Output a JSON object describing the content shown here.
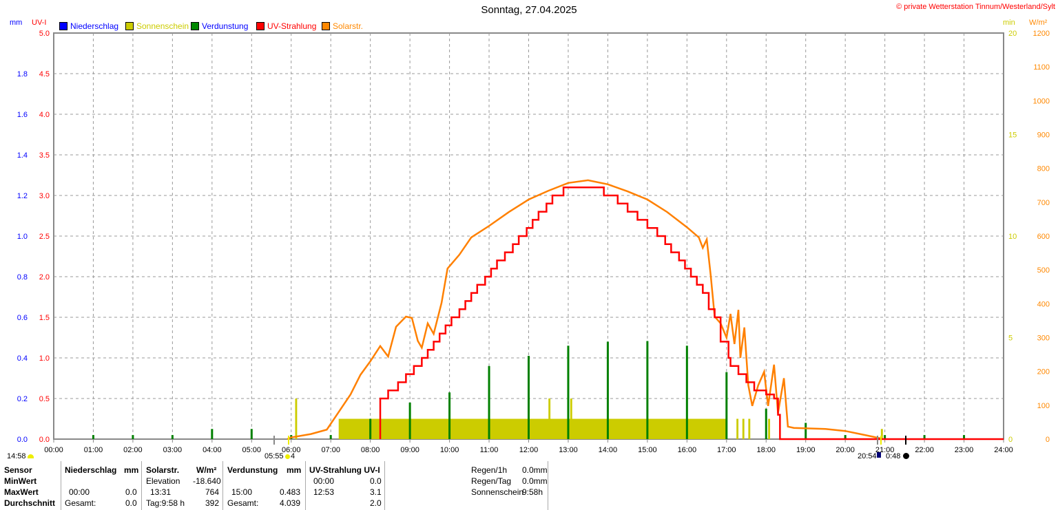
{
  "title": "Sonntag, 27.04.2025",
  "copyright": "© private Wetterstation Tinnum/Westerland/Sylt",
  "axis_units": {
    "mm": "mm",
    "uv": "UV-I",
    "min": "min",
    "wm2": "W/m²"
  },
  "legend": [
    {
      "label": "Niederschlag",
      "color": "#0000ff"
    },
    {
      "label": "Sonnenschein",
      "color": "#cccc00"
    },
    {
      "label": "Verdunstung",
      "color": "#008000"
    },
    {
      "label": "UV-Strahlung",
      "color": "#ff0000"
    },
    {
      "label": "Solarstr.",
      "color": "#ff8000"
    }
  ],
  "markers": {
    "sunrise_prev": "14:58",
    "sunrise": "05:55",
    "moon_phase": "4",
    "sunset": "20:54",
    "moon_time": "0:48"
  },
  "chart_data": {
    "type": "line",
    "title": "Sonntag, 27.04.2025",
    "x_range": [
      0,
      24
    ],
    "x_ticks": [
      "00:00",
      "01:00",
      "02:00",
      "03:00",
      "04:00",
      "05:00",
      "06:00",
      "07:00",
      "08:00",
      "09:00",
      "10:00",
      "11:00",
      "12:00",
      "13:00",
      "14:00",
      "15:00",
      "16:00",
      "17:00",
      "18:00",
      "19:00",
      "20:00",
      "21:00",
      "22:00",
      "23:00",
      "24:00"
    ],
    "mm_ticks": [
      "0.0",
      "0.2",
      "0.4",
      "0.6",
      "0.8",
      "1.0",
      "1.2",
      "1.4",
      "1.6",
      "1.8"
    ],
    "mm_range": [
      0,
      2
    ],
    "uv_ticks": [
      "0.0",
      "0.5",
      "1.0",
      "1.5",
      "2.0",
      "2.5",
      "3.0",
      "3.5",
      "4.0",
      "4.5",
      "5.0"
    ],
    "uv_range": [
      0,
      5
    ],
    "min_ticks": [
      "0",
      "5",
      "10",
      "15",
      "20"
    ],
    "min_range": [
      0,
      20
    ],
    "wm2_ticks": [
      "0",
      "100",
      "200",
      "300",
      "400",
      "500",
      "600",
      "700",
      "800",
      "900",
      "1000",
      "1100",
      "1200"
    ],
    "wm2_range": [
      0,
      1200
    ],
    "grid": true,
    "solar": [
      [
        5.9,
        0
      ],
      [
        6.0,
        5
      ],
      [
        6.5,
        15
      ],
      [
        6.9,
        28
      ],
      [
        7.2,
        80
      ],
      [
        7.5,
        132
      ],
      [
        7.75,
        190
      ],
      [
        8.0,
        230
      ],
      [
        8.25,
        275
      ],
      [
        8.45,
        244
      ],
      [
        8.65,
        332
      ],
      [
        8.9,
        362
      ],
      [
        9.05,
        358
      ],
      [
        9.2,
        290
      ],
      [
        9.3,
        270
      ],
      [
        9.45,
        342
      ],
      [
        9.6,
        311
      ],
      [
        9.8,
        403
      ],
      [
        9.95,
        504
      ],
      [
        10.25,
        545
      ],
      [
        10.55,
        596
      ],
      [
        11.0,
        630
      ],
      [
        11.5,
        671
      ],
      [
        12.0,
        708
      ],
      [
        12.5,
        734
      ],
      [
        13.0,
        757
      ],
      [
        13.5,
        765
      ],
      [
        14.0,
        753
      ],
      [
        14.5,
        732
      ],
      [
        15.0,
        708
      ],
      [
        15.5,
        671
      ],
      [
        16.0,
        626
      ],
      [
        16.3,
        596
      ],
      [
        16.4,
        565
      ],
      [
        16.5,
        590
      ],
      [
        16.6,
        484
      ],
      [
        16.7,
        362
      ],
      [
        16.85,
        342
      ],
      [
        17.0,
        300
      ],
      [
        17.1,
        370
      ],
      [
        17.2,
        281
      ],
      [
        17.3,
        382
      ],
      [
        17.35,
        240
      ],
      [
        17.45,
        330
      ],
      [
        17.55,
        159
      ],
      [
        17.65,
        98
      ],
      [
        17.8,
        159
      ],
      [
        17.95,
        199
      ],
      [
        18.05,
        98
      ],
      [
        18.2,
        220
      ],
      [
        18.3,
        77
      ],
      [
        18.45,
        180
      ],
      [
        18.55,
        37
      ],
      [
        18.7,
        33
      ],
      [
        19.5,
        30
      ],
      [
        20.0,
        24
      ],
      [
        20.5,
        12
      ],
      [
        20.9,
        2
      ]
    ],
    "uv": [
      [
        8.25,
        0
      ],
      [
        8.25,
        0.5
      ],
      [
        8.45,
        0.6
      ],
      [
        8.7,
        0.7
      ],
      [
        8.9,
        0.8
      ],
      [
        9.1,
        0.9
      ],
      [
        9.3,
        1.0
      ],
      [
        9.45,
        1.1
      ],
      [
        9.6,
        1.2
      ],
      [
        9.75,
        1.3
      ],
      [
        9.9,
        1.4
      ],
      [
        10.05,
        1.5
      ],
      [
        10.25,
        1.6
      ],
      [
        10.4,
        1.7
      ],
      [
        10.55,
        1.8
      ],
      [
        10.7,
        1.9
      ],
      [
        10.9,
        2.0
      ],
      [
        11.05,
        2.1
      ],
      [
        11.2,
        2.2
      ],
      [
        11.4,
        2.3
      ],
      [
        11.6,
        2.4
      ],
      [
        11.75,
        2.5
      ],
      [
        11.95,
        2.6
      ],
      [
        12.1,
        2.7
      ],
      [
        12.25,
        2.8
      ],
      [
        12.45,
        2.9
      ],
      [
        12.6,
        3.0
      ],
      [
        12.88,
        3.1
      ],
      [
        13.9,
        3.0
      ],
      [
        14.25,
        2.9
      ],
      [
        14.5,
        2.8
      ],
      [
        14.75,
        2.7
      ],
      [
        15.0,
        2.6
      ],
      [
        15.25,
        2.5
      ],
      [
        15.45,
        2.4
      ],
      [
        15.6,
        2.3
      ],
      [
        15.8,
        2.2
      ],
      [
        15.95,
        2.1
      ],
      [
        16.1,
        2.0
      ],
      [
        16.25,
        1.9
      ],
      [
        16.4,
        1.8
      ],
      [
        16.55,
        1.6
      ],
      [
        16.7,
        1.5
      ],
      [
        16.85,
        1.2
      ],
      [
        17.05,
        1.0
      ],
      [
        17.1,
        0.9
      ],
      [
        17.3,
        0.8
      ],
      [
        17.5,
        0.7
      ],
      [
        17.7,
        0.6
      ],
      [
        18.0,
        0.55
      ],
      [
        18.2,
        0.5
      ],
      [
        18.3,
        0.3
      ],
      [
        18.35,
        0
      ],
      [
        24,
        0
      ]
    ],
    "sunshine_minutes": [
      [
        6.1,
        6.15,
        2
      ],
      [
        7.2,
        17.0,
        1
      ],
      [
        12.5,
        12.55,
        2
      ],
      [
        13.05,
        13.1,
        2
      ],
      [
        17.25,
        17.3,
        1
      ],
      [
        17.4,
        17.45,
        1
      ],
      [
        17.55,
        17.6,
        1
      ],
      [
        18.05,
        18.1,
        1
      ],
      [
        20.9,
        20.95,
        0.5
      ]
    ],
    "evaporation_mm": [
      [
        1,
        0.02
      ],
      [
        2,
        0.02
      ],
      [
        3,
        0.02
      ],
      [
        4,
        0.05
      ],
      [
        5,
        0.05
      ],
      [
        6,
        0.02
      ],
      [
        7,
        0.02
      ],
      [
        8,
        0.1
      ],
      [
        9,
        0.18
      ],
      [
        10,
        0.23
      ],
      [
        11,
        0.36
      ],
      [
        12,
        0.41
      ],
      [
        13,
        0.46
      ],
      [
        14,
        0.48
      ],
      [
        15,
        0.483
      ],
      [
        16,
        0.46
      ],
      [
        17,
        0.33
      ],
      [
        18,
        0.15
      ],
      [
        19,
        0.08
      ],
      [
        20,
        0.02
      ],
      [
        21,
        0.02
      ],
      [
        22,
        0.02
      ],
      [
        23,
        0.02
      ]
    ]
  },
  "table": {
    "row_labels": [
      "Sensor",
      "MinWert",
      "MaxWert",
      "Durchschnitt"
    ],
    "niederschlag": {
      "header": "Niederschlag",
      "unit": "mm",
      "max_time": "00:00",
      "max_val": "0.0",
      "avg_label": "Gesamt:",
      "avg_val": "0.0"
    },
    "solar": {
      "header": "Solarstr.",
      "unit": "W/m²",
      "min_label": "Elevation",
      "min_val": "-18.640",
      "max_time": "13:31",
      "max_val": "764",
      "avg_label": "Tag:9:58 h",
      "avg_val": "392"
    },
    "verdunstung": {
      "header": "Verdunstung",
      "unit": "mm",
      "max_time": "15:00",
      "max_val": "0.483",
      "avg_label": "Gesamt:",
      "avg_val": "4.039"
    },
    "uv": {
      "header": "UV-Strahlung UV-I",
      "min_time": "00:00",
      "min_val": "0.0",
      "max_time": "12:53",
      "max_val": "3.1",
      "avg_val": "2.0"
    },
    "summary": [
      {
        "label": "Regen/1h",
        "value": "0.0mm"
      },
      {
        "label": "Regen/Tag",
        "value": "0.0mm"
      },
      {
        "label": "Sonnenschein",
        "value": "9:58h"
      }
    ]
  }
}
